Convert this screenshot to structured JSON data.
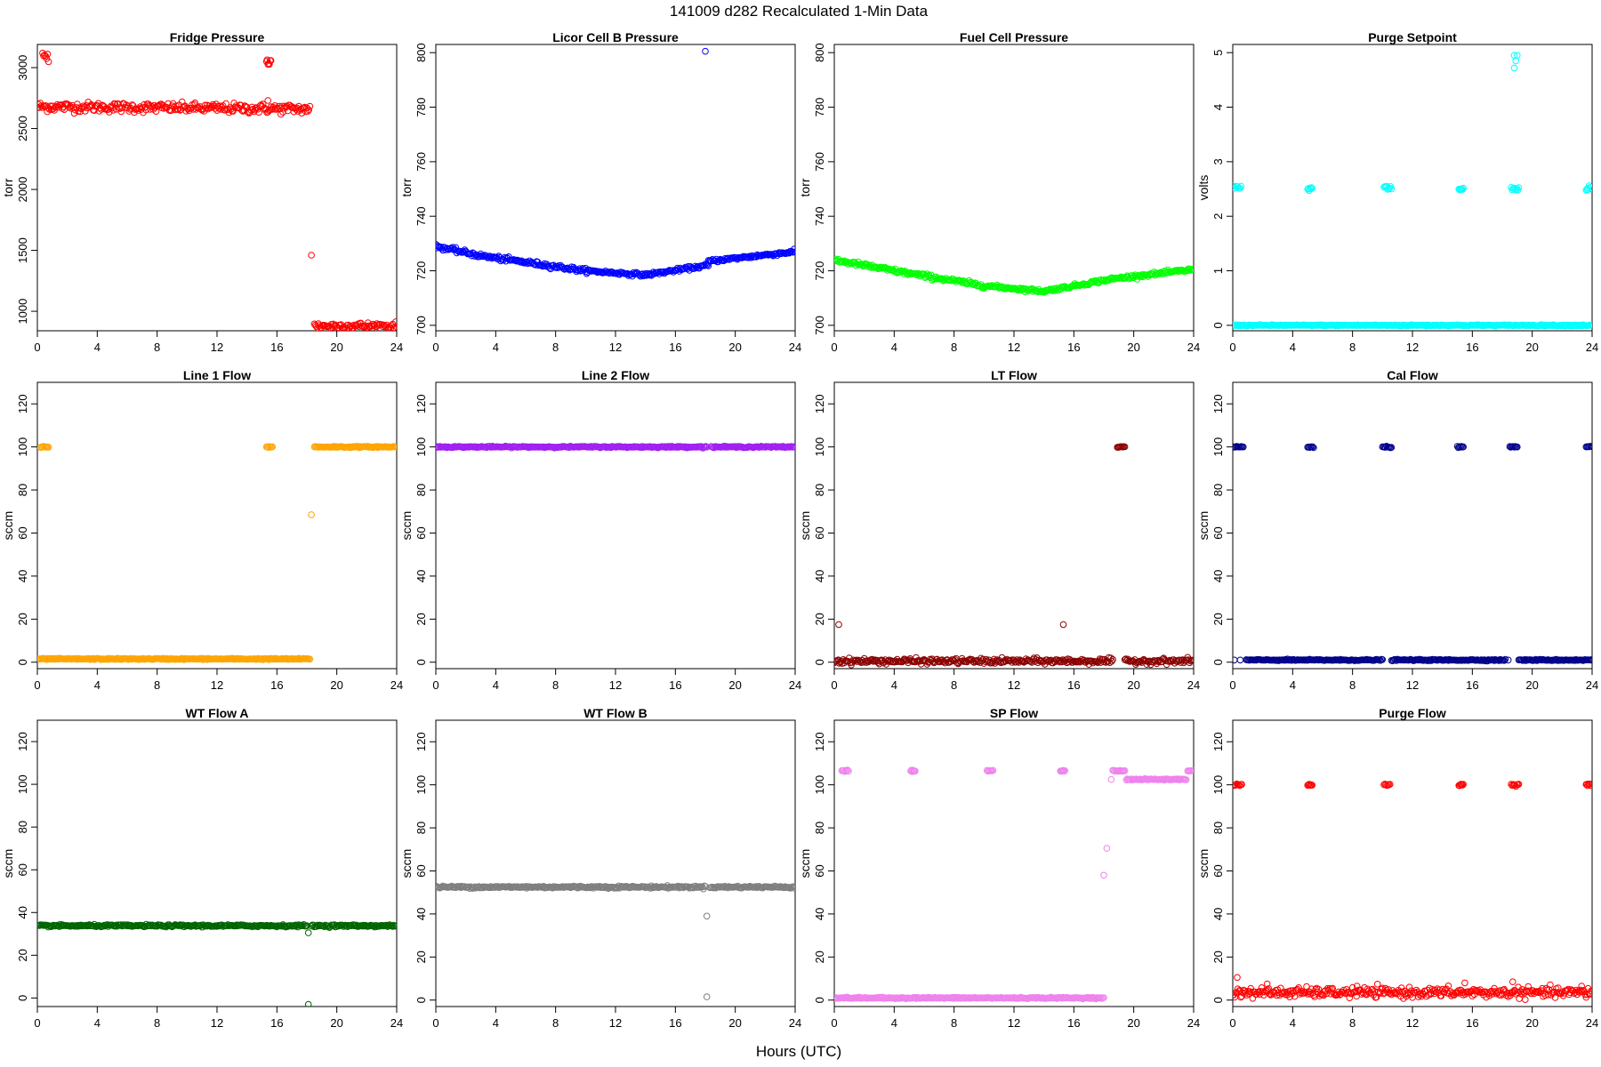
{
  "figure": {
    "title": "141009   d282   Recalculated 1-Min Data",
    "xlabel": "Hours (UTC)"
  },
  "chart_data": [
    {
      "type": "scatter",
      "title": "Fridge Pressure",
      "ylabel": "torr",
      "color": "#ff0000",
      "xlim": [
        0,
        24
      ],
      "xticks": [
        0,
        4,
        8,
        12,
        16,
        20,
        24
      ],
      "ylim": [
        840,
        3190
      ],
      "yticks": [
        1000,
        1500,
        2000,
        2500,
        3000
      ],
      "segments": [
        {
          "x": [
            0,
            18.2
          ],
          "y": [
            2680,
            2660
          ],
          "noise": 40
        },
        {
          "x": [
            0.35,
            0.75
          ],
          "y": [
            3080,
            3080
          ],
          "noise": 60
        },
        {
          "x": [
            15.3,
            15.6
          ],
          "y": [
            3060,
            3060
          ],
          "noise": 60
        },
        {
          "x": [
            18.5,
            24
          ],
          "y": [
            880,
            880
          ],
          "noise": 30
        }
      ],
      "points": [
        {
          "x": 18.3,
          "y": 1460
        },
        {
          "x": 15.4,
          "y": 2730
        }
      ]
    },
    {
      "type": "scatter",
      "title": "Licor Cell B Pressure",
      "ylabel": "torr",
      "color": "#0000ff",
      "xlim": [
        0,
        24
      ],
      "xticks": [
        0,
        4,
        8,
        12,
        16,
        20,
        24
      ],
      "ylim": [
        698,
        803
      ],
      "yticks": [
        700,
        720,
        740,
        760,
        780,
        800
      ],
      "segments": [
        {
          "x": [
            0,
            3
          ],
          "y": [
            729,
            725.5
          ],
          "noise": 0.8
        },
        {
          "x": [
            3,
            10
          ],
          "y": [
            725.5,
            720
          ],
          "noise": 0.8
        },
        {
          "x": [
            10,
            14
          ],
          "y": [
            720,
            718.5
          ],
          "noise": 0.6
        },
        {
          "x": [
            14,
            18.2
          ],
          "y": [
            718.5,
            722
          ],
          "noise": 0.6
        },
        {
          "x": [
            18.2,
            24
          ],
          "y": [
            723.5,
            727
          ],
          "noise": 0.6
        }
      ],
      "points": [
        {
          "x": 18,
          "y": 800.5
        }
      ]
    },
    {
      "type": "scatter",
      "title": "Fuel Cell Pressure",
      "ylabel": "torr",
      "color": "#00ff00",
      "xlim": [
        0,
        24
      ],
      "xticks": [
        0,
        4,
        8,
        12,
        16,
        20,
        24
      ],
      "ylim": [
        698,
        803
      ],
      "yticks": [
        700,
        720,
        740,
        760,
        780,
        800
      ],
      "segments": [
        {
          "x": [
            0,
            4
          ],
          "y": [
            724,
            720
          ],
          "noise": 0.8
        },
        {
          "x": [
            4,
            10
          ],
          "y": [
            720,
            714.5
          ],
          "noise": 0.8
        },
        {
          "x": [
            10,
            14
          ],
          "y": [
            714.5,
            712.5
          ],
          "noise": 0.6
        },
        {
          "x": [
            14,
            18.5
          ],
          "y": [
            712.5,
            717
          ],
          "noise": 0.6
        },
        {
          "x": [
            18.5,
            24
          ],
          "y": [
            717,
            720.5
          ],
          "noise": 0.6
        }
      ],
      "points": []
    },
    {
      "type": "scatter",
      "title": "Purge Setpoint",
      "ylabel": "volts",
      "color": "#00ffff",
      "xlim": [
        0,
        24
      ],
      "xticks": [
        0,
        4,
        8,
        12,
        16,
        20,
        24
      ],
      "ylim": [
        -0.1,
        5.15
      ],
      "yticks": [
        0,
        1,
        2,
        3,
        4,
        5
      ],
      "segments": [
        {
          "x": [
            0,
            24
          ],
          "y": [
            0,
            0
          ],
          "noise": 0.01
        },
        {
          "x": [
            0,
            0.55
          ],
          "y": [
            2.52,
            2.52
          ],
          "noise": 0.05
        },
        {
          "x": [
            5.0,
            5.3
          ],
          "y": [
            2.5,
            2.5
          ],
          "noise": 0.05
        },
        {
          "x": [
            10.1,
            10.6
          ],
          "y": [
            2.52,
            2.52
          ],
          "noise": 0.05
        },
        {
          "x": [
            15.1,
            15.4
          ],
          "y": [
            2.5,
            2.5
          ],
          "noise": 0.05
        },
        {
          "x": [
            18.6,
            19.1
          ],
          "y": [
            2.5,
            2.5
          ],
          "noise": 0.05
        },
        {
          "x": [
            23.6,
            23.9
          ],
          "y": [
            2.5,
            2.5
          ],
          "noise": 0.05
        }
      ],
      "points": [
        {
          "x": 18.8,
          "y": 4.95
        },
        {
          "x": 19.0,
          "y": 4.95
        },
        {
          "x": 18.8,
          "y": 4.72
        },
        {
          "x": 18.9,
          "y": 4.85
        }
      ]
    },
    {
      "type": "scatter",
      "title": "Line 1 Flow",
      "ylabel": "sccm",
      "color": "#ffa500",
      "xlim": [
        0,
        24
      ],
      "xticks": [
        0,
        4,
        8,
        12,
        16,
        20,
        24
      ],
      "ylim": [
        -3,
        130
      ],
      "yticks": [
        0,
        20,
        40,
        60,
        80,
        100,
        120
      ],
      "segments": [
        {
          "x": [
            0,
            18.2
          ],
          "y": [
            1.5,
            1.5
          ],
          "noise": 0.3
        },
        {
          "x": [
            0.2,
            0.75
          ],
          "y": [
            100,
            100
          ],
          "noise": 0.3
        },
        {
          "x": [
            15.3,
            15.7
          ],
          "y": [
            100,
            100
          ],
          "noise": 0.3
        },
        {
          "x": [
            18.5,
            24
          ],
          "y": [
            100,
            100
          ],
          "noise": 0.3
        }
      ],
      "points": [
        {
          "x": 18.3,
          "y": 68.5
        }
      ]
    },
    {
      "type": "scatter",
      "title": "Line 2 Flow",
      "ylabel": "sccm",
      "color": "#a020f0",
      "xlim": [
        0,
        24
      ],
      "xticks": [
        0,
        4,
        8,
        12,
        16,
        20,
        24
      ],
      "ylim": [
        -3,
        130
      ],
      "yticks": [
        0,
        20,
        40,
        60,
        80,
        100,
        120
      ],
      "segments": [
        {
          "x": [
            0,
            18.1
          ],
          "y": [
            100,
            100
          ],
          "noise": 0.3
        },
        {
          "x": [
            18.4,
            24
          ],
          "y": [
            100,
            100
          ],
          "noise": 0.3
        }
      ],
      "points": []
    },
    {
      "type": "scatter",
      "title": "LT Flow",
      "ylabel": "sccm",
      "color": "#8b0000",
      "xlim": [
        0,
        24
      ],
      "xticks": [
        0,
        4,
        8,
        12,
        16,
        20,
        24
      ],
      "ylim": [
        -3,
        130
      ],
      "yticks": [
        0,
        20,
        40,
        60,
        80,
        100,
        120
      ],
      "segments": [
        {
          "x": [
            0,
            18.6
          ],
          "y": [
            0.5,
            0.5
          ],
          "noise": 1.2
        },
        {
          "x": [
            19.4,
            24
          ],
          "y": [
            0.5,
            0.5
          ],
          "noise": 1.2
        },
        {
          "x": [
            18.9,
            19.4
          ],
          "y": [
            100,
            100
          ],
          "noise": 0.3
        }
      ],
      "points": [
        {
          "x": 0.3,
          "y": 17.5
        },
        {
          "x": 15.3,
          "y": 17.5
        }
      ]
    },
    {
      "type": "scatter",
      "title": "Cal Flow",
      "ylabel": "sccm",
      "color": "#00008b",
      "xlim": [
        0,
        24
      ],
      "xticks": [
        0,
        4,
        8,
        12,
        16,
        20,
        24
      ],
      "ylim": [
        -3,
        130
      ],
      "yticks": [
        0,
        20,
        40,
        60,
        80,
        100,
        120
      ],
      "segments": [
        {
          "x": [
            0.9,
            5.0
          ],
          "y": [
            1,
            1
          ],
          "noise": 0.3
        },
        {
          "x": [
            5.0,
            10.0
          ],
          "y": [
            1,
            1
          ],
          "noise": 0.3
        },
        {
          "x": [
            10.6,
            15.0
          ],
          "y": [
            1,
            1
          ],
          "noise": 0.3
        },
        {
          "x": [
            15.0,
            18.2
          ],
          "y": [
            1,
            1
          ],
          "noise": 0.3
        },
        {
          "x": [
            19.1,
            24
          ],
          "y": [
            1,
            1
          ],
          "noise": 0.3
        },
        {
          "x": [
            0,
            0.7
          ],
          "y": [
            100,
            100
          ],
          "noise": 0.3
        },
        {
          "x": [
            5.0,
            5.4
          ],
          "y": [
            100,
            100
          ],
          "noise": 0.3
        },
        {
          "x": [
            10.0,
            10.6
          ],
          "y": [
            100,
            100
          ],
          "noise": 0.3
        },
        {
          "x": [
            15.0,
            15.4
          ],
          "y": [
            100,
            100
          ],
          "noise": 0.3
        },
        {
          "x": [
            18.5,
            19.0
          ],
          "y": [
            100,
            100
          ],
          "noise": 0.3
        },
        {
          "x": [
            23.6,
            24
          ],
          "y": [
            100,
            100
          ],
          "noise": 0.3
        }
      ],
      "points": [
        {
          "x": 0.1,
          "y": 1
        },
        {
          "x": 0.5,
          "y": 1
        },
        {
          "x": 18.4,
          "y": 1
        }
      ]
    },
    {
      "type": "scatter",
      "title": "WT Flow A",
      "ylabel": "sccm",
      "color": "#006400",
      "xlim": [
        0,
        24
      ],
      "xticks": [
        0,
        4,
        8,
        12,
        16,
        20,
        24
      ],
      "ylim": [
        -4,
        130
      ],
      "yticks": [
        0,
        20,
        40,
        60,
        80,
        100,
        120
      ],
      "segments": [
        {
          "x": [
            0,
            18.0
          ],
          "y": [
            33.8,
            33.8
          ],
          "noise": 0.5
        },
        {
          "x": [
            18.3,
            24
          ],
          "y": [
            33.8,
            33.8
          ],
          "noise": 0.5
        }
      ],
      "points": [
        {
          "x": 18.1,
          "y": 30.5
        },
        {
          "x": 18.1,
          "y": -3
        }
      ]
    },
    {
      "type": "scatter",
      "title": "WT Flow B",
      "ylabel": "sccm",
      "color": "#7f7f7f",
      "xlim": [
        0,
        24
      ],
      "xticks": [
        0,
        4,
        8,
        12,
        16,
        20,
        24
      ],
      "ylim": [
        -3,
        130
      ],
      "yticks": [
        0,
        20,
        40,
        60,
        80,
        100,
        120
      ],
      "segments": [
        {
          "x": [
            0,
            18.0
          ],
          "y": [
            52.5,
            52.5
          ],
          "noise": 0.5
        },
        {
          "x": [
            18.3,
            24
          ],
          "y": [
            52.5,
            52.5
          ],
          "noise": 0.5
        }
      ],
      "points": [
        {
          "x": 18.1,
          "y": 39
        },
        {
          "x": 18.1,
          "y": 1.5
        }
      ]
    },
    {
      "type": "scatter",
      "title": "SP Flow",
      "ylabel": "sccm",
      "color": "#ee82ee",
      "xlim": [
        0,
        24
      ],
      "xticks": [
        0,
        4,
        8,
        12,
        16,
        20,
        24
      ],
      "ylim": [
        -3,
        130
      ],
      "yticks": [
        0,
        20,
        40,
        60,
        80,
        100,
        120
      ],
      "segments": [
        {
          "x": [
            0,
            18.0
          ],
          "y": [
            1,
            1
          ],
          "noise": 0.3
        },
        {
          "x": [
            0.5,
            0.95
          ],
          "y": [
            106.5,
            106.5
          ],
          "noise": 0.3
        },
        {
          "x": [
            5.1,
            5.4
          ],
          "y": [
            106.5,
            106.5
          ],
          "noise": 0.3
        },
        {
          "x": [
            10.2,
            10.6
          ],
          "y": [
            106.5,
            106.5
          ],
          "noise": 0.3
        },
        {
          "x": [
            15.1,
            15.4
          ],
          "y": [
            106.5,
            106.5
          ],
          "noise": 0.3
        },
        {
          "x": [
            18.6,
            19.4
          ],
          "y": [
            106.5,
            106.5
          ],
          "noise": 0.3
        },
        {
          "x": [
            19.5,
            23.5
          ],
          "y": [
            102.5,
            102.5
          ],
          "noise": 0.3
        },
        {
          "x": [
            23.6,
            24
          ],
          "y": [
            106.5,
            106.5
          ],
          "noise": 0.3
        }
      ],
      "points": [
        {
          "x": 0.1,
          "y": 1
        },
        {
          "x": 0.4,
          "y": 1
        },
        {
          "x": 18.2,
          "y": 70.5
        },
        {
          "x": 18.0,
          "y": 58
        },
        {
          "x": 18.5,
          "y": 102.5
        }
      ]
    },
    {
      "type": "scatter",
      "title": "Purge Flow",
      "ylabel": "sccm",
      "color": "#ff0000",
      "xlim": [
        0,
        24
      ],
      "xticks": [
        0,
        4,
        8,
        12,
        16,
        20,
        24
      ],
      "ylim": [
        -3,
        130
      ],
      "yticks": [
        0,
        20,
        40,
        60,
        80,
        100,
        120
      ],
      "segments": [
        {
          "x": [
            0,
            24
          ],
          "y": [
            3.5,
            3.5
          ],
          "noise": 2.2
        },
        {
          "x": [
            0,
            0.6
          ],
          "y": [
            100,
            100
          ],
          "noise": 0.6
        },
        {
          "x": [
            5.0,
            5.3
          ],
          "y": [
            100,
            100
          ],
          "noise": 0.6
        },
        {
          "x": [
            10.1,
            10.5
          ],
          "y": [
            100,
            100
          ],
          "noise": 0.6
        },
        {
          "x": [
            15.1,
            15.4
          ],
          "y": [
            100,
            100
          ],
          "noise": 0.6
        },
        {
          "x": [
            18.6,
            19.1
          ],
          "y": [
            100,
            100
          ],
          "noise": 0.6
        },
        {
          "x": [
            23.6,
            23.9
          ],
          "y": [
            100,
            100
          ],
          "noise": 0.6
        }
      ],
      "points": [
        {
          "x": 0.3,
          "y": 10.5
        },
        {
          "x": 15.5,
          "y": 8
        },
        {
          "x": 18.7,
          "y": 8.5
        },
        {
          "x": 2.3,
          "y": 7.5
        },
        {
          "x": 8.3,
          "y": 6.5
        },
        {
          "x": 23.3,
          "y": 6.5
        }
      ]
    }
  ]
}
